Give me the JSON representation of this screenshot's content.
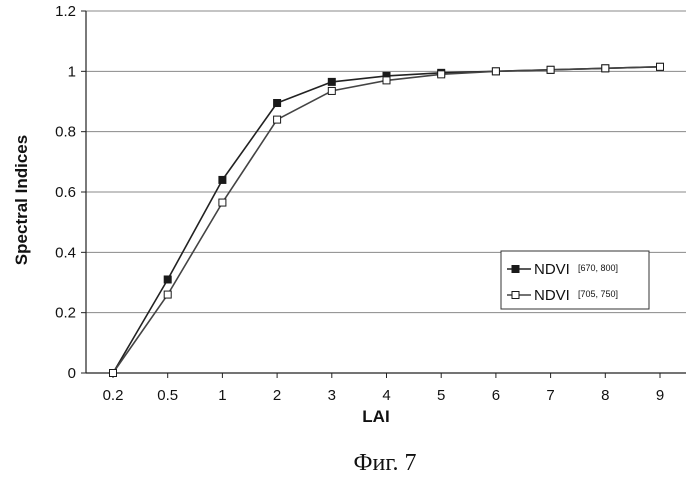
{
  "chart_data": {
    "type": "line",
    "xlabel": "LAI",
    "ylabel": "Spectral Indices",
    "categories": [
      "0.2",
      "0.5",
      "1",
      "2",
      "3",
      "4",
      "5",
      "6",
      "7",
      "8",
      "9"
    ],
    "ylim": [
      0,
      1.2
    ],
    "yticks": [
      "0",
      "0.2",
      "0.4",
      "0.6",
      "0.8",
      "1",
      "1.2"
    ],
    "grid": "horizontal",
    "legend_position": "right",
    "series": [
      {
        "name": "NDVI",
        "name_subscript": "[670, 800]",
        "marker": "filled-square",
        "color": "#222222",
        "values": [
          0,
          0.31,
          0.64,
          0.895,
          0.965,
          0.985,
          0.995,
          1.0,
          1.005,
          1.01,
          1.015
        ]
      },
      {
        "name": "NDVI",
        "name_subscript": "[705, 750]",
        "marker": "open-square",
        "color": "#444444",
        "values": [
          0,
          0.26,
          0.565,
          0.84,
          0.935,
          0.97,
          0.99,
          1.0,
          1.005,
          1.01,
          1.015
        ]
      }
    ]
  },
  "caption": "Фиг. 7"
}
